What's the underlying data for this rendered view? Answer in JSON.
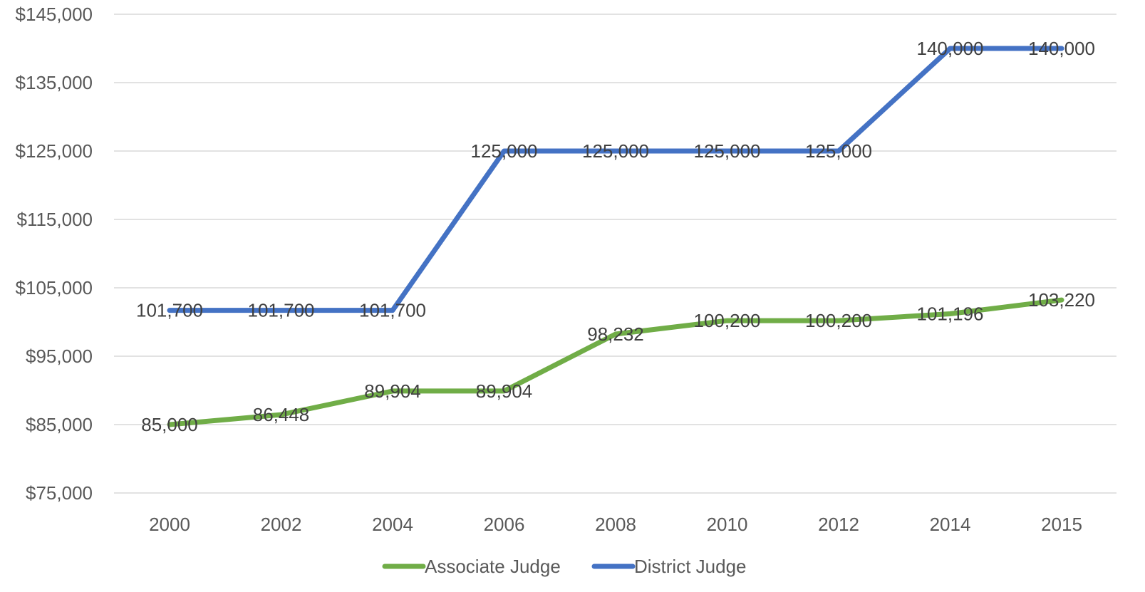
{
  "chart_data": {
    "type": "line",
    "title": "",
    "xlabel": "",
    "ylabel": "",
    "categories": [
      "2000",
      "2002",
      "2004",
      "2006",
      "2008",
      "2010",
      "2012",
      "2014",
      "2015"
    ],
    "ylim": [
      75000,
      145000
    ],
    "yticks": [
      75000,
      85000,
      95000,
      105000,
      115000,
      125000,
      135000,
      145000
    ],
    "ytick_labels": [
      "$75,000",
      "$85,000",
      "$95,000",
      "$105,000",
      "$115,000",
      "$125,000",
      "$135,000",
      "$145,000"
    ],
    "grid": true,
    "legend_position": "bottom",
    "series": [
      {
        "name": "Associate Judge",
        "color": "#70ad47",
        "values": [
          85000,
          86448,
          89904,
          89904,
          98232,
          100200,
          100200,
          101196,
          103220
        ],
        "labels": [
          "85,000",
          "86,448",
          "89,904",
          "89,904",
          "98,232",
          "100,200",
          "100,200",
          "101,196",
          "103,220"
        ]
      },
      {
        "name": "District Judge",
        "color": "#4472c4",
        "values": [
          101700,
          101700,
          101700,
          125000,
          125000,
          125000,
          125000,
          140000,
          140000
        ],
        "labels": [
          "101,700",
          "101,700",
          "101,700",
          "125,000",
          "125,000",
          "125,000",
          "125,000",
          "140,000",
          "140,000"
        ]
      }
    ]
  }
}
